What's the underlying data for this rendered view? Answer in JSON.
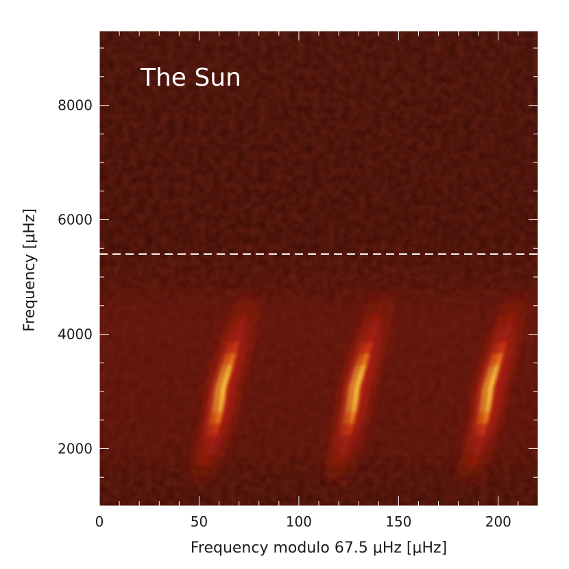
{
  "chart_data": {
    "type": "heatmap",
    "title": "The Sun",
    "xlabel": "Frequency modulo 67.5 μHz [μHz]",
    "ylabel": "Frequency [μHz]",
    "xlim": [
      0,
      220
    ],
    "ylim": [
      1000,
      9300
    ],
    "x_ticks": [
      0,
      50,
      100,
      150,
      200
    ],
    "y_ticks": [
      2000,
      4000,
      6000,
      8000
    ],
    "x_minor_step": 10,
    "y_minor_step": 500,
    "grid": false,
    "colormap": "red-temperature",
    "colors": {
      "background": "#3a0a05",
      "mid": "#a01808",
      "hot": "#ffd040",
      "dashed_line": "#ffffff"
    },
    "reference_line": {
      "axis": "y",
      "value": 5400,
      "style": "dashed"
    },
    "ridges": [
      {
        "x_at_peak": 62,
        "x_at_low": 46,
        "x_at_high": 76,
        "peak_frequency": 3050,
        "freq_range": [
          1500,
          4700
        ]
      },
      {
        "x_at_peak": 129,
        "x_at_low": 113,
        "x_at_high": 143,
        "peak_frequency": 3050,
        "freq_range": [
          1500,
          4700
        ]
      },
      {
        "x_at_peak": 196,
        "x_at_low": 180,
        "x_at_high": 210,
        "peak_frequency": 3050,
        "freq_range": [
          1500,
          4700
        ]
      }
    ]
  }
}
